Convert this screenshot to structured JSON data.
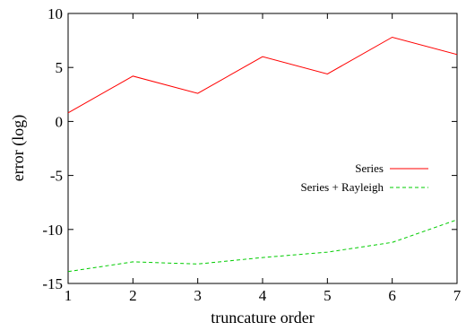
{
  "chart_data": {
    "type": "line",
    "title": "",
    "xlabel": "truncature order",
    "ylabel": "error (log)",
    "x": [
      1,
      2,
      3,
      4,
      5,
      6,
      7
    ],
    "xlim": [
      1,
      7
    ],
    "ylim": [
      -15,
      10
    ],
    "xticks": [
      1,
      2,
      3,
      4,
      5,
      6,
      7
    ],
    "yticks": [
      -15,
      -10,
      -5,
      0,
      5,
      10
    ],
    "grid": false,
    "legend_position": "right",
    "series": [
      {
        "name": "Series",
        "values": [
          0.8,
          4.2,
          2.6,
          6.0,
          4.4,
          7.8,
          6.2
        ],
        "color": "#ff0000",
        "dash": "solid"
      },
      {
        "name": "Series + Rayleigh",
        "values": [
          -13.9,
          -13.0,
          -13.2,
          -12.6,
          -12.1,
          -11.2,
          -9.1
        ],
        "color": "#00cc00",
        "dash": "dashed"
      }
    ]
  }
}
